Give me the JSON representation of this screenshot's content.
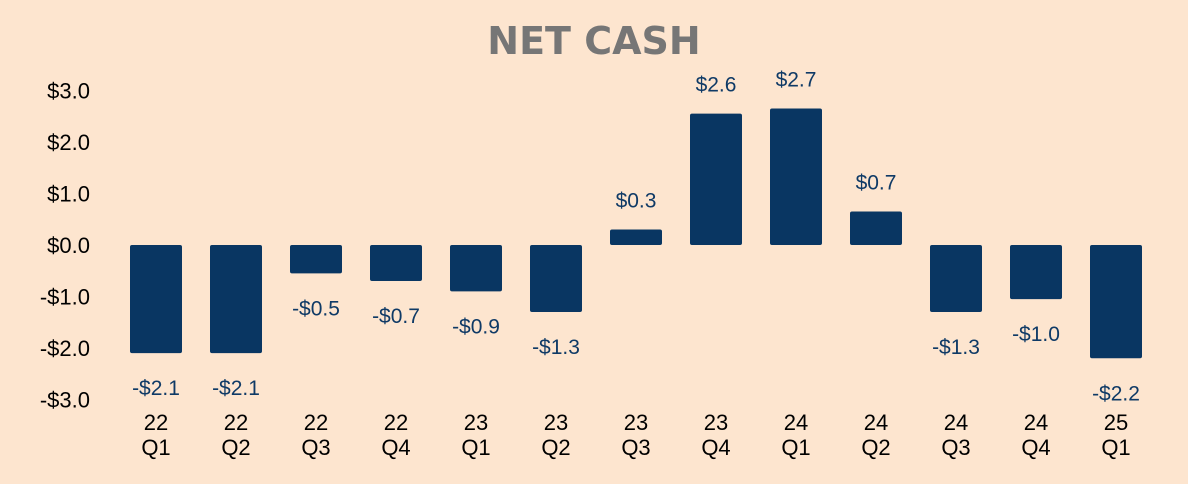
{
  "colors": {
    "background": "#fde5cf",
    "bar": "#093662",
    "data_label": "#0f3a66",
    "title": "#767676",
    "axis_text": "#000000"
  },
  "chart_data": {
    "type": "bar",
    "title": "NET CASH",
    "xlabel": "",
    "ylabel": "",
    "ylim": [
      -3.0,
      3.0
    ],
    "yticks": [
      "$3.0",
      "$2.0",
      "$1.0",
      "$0.0",
      "-$1.0",
      "-$2.0",
      "-$3.0"
    ],
    "ytick_values": [
      3,
      2,
      1,
      0,
      -1,
      -2,
      -3
    ],
    "categories": [
      [
        "22",
        "Q1"
      ],
      [
        "22",
        "Q2"
      ],
      [
        "22",
        "Q3"
      ],
      [
        "22",
        "Q4"
      ],
      [
        "23",
        "Q1"
      ],
      [
        "23",
        "Q2"
      ],
      [
        "23",
        "Q3"
      ],
      [
        "23",
        "Q4"
      ],
      [
        "24",
        "Q1"
      ],
      [
        "24",
        "Q2"
      ],
      [
        "24",
        "Q3"
      ],
      [
        "24",
        "Q4"
      ],
      [
        "25",
        "Q1"
      ]
    ],
    "values": [
      -2.1,
      -2.1,
      -0.55,
      -0.7,
      -0.9,
      -1.3,
      0.3,
      2.55,
      2.65,
      0.65,
      -1.3,
      -1.05,
      -2.2
    ],
    "data_labels": [
      "-$2.1",
      "-$2.1",
      "-$0.5",
      "-$0.7",
      "-$0.9",
      "-$1.3",
      "$0.3",
      "$2.6",
      "$2.7",
      "$0.7",
      "-$1.3",
      "-$1.0",
      "-$2.2"
    ],
    "grid": false,
    "legend": "none"
  }
}
